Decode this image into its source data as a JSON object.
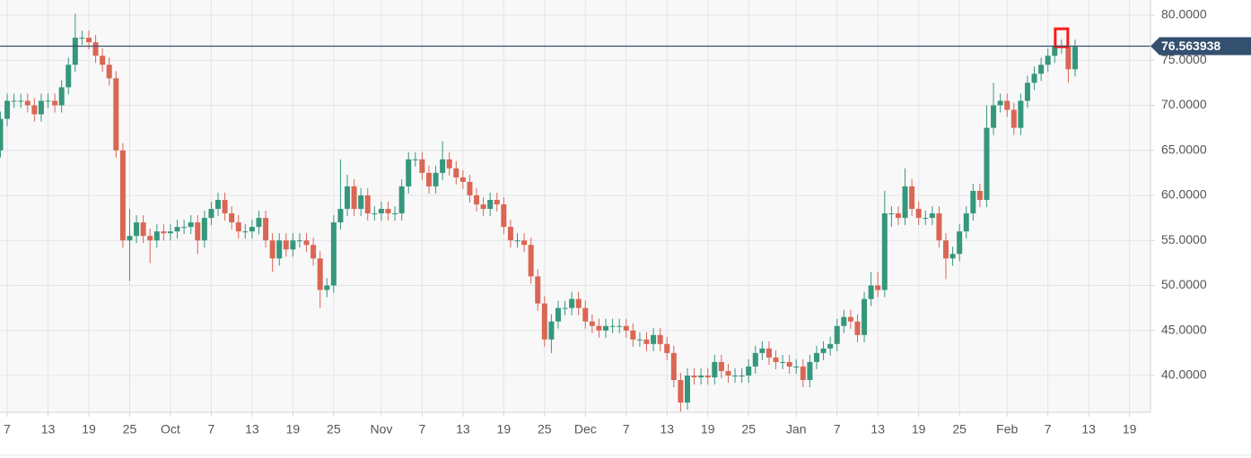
{
  "chart_data": {
    "type": "candlestick",
    "up_color": "#35977c",
    "down_color": "#da6654",
    "grid": true,
    "last_price": 76.563938,
    "last_price_color": "#34506f",
    "xlim": [
      5.94,
      175.08
    ],
    "ylim": [
      35.92,
      81.69
    ],
    "yticks": [
      {
        "value": 40,
        "label": "40.0000"
      },
      {
        "value": 45,
        "label": "45.0000"
      },
      {
        "value": 50,
        "label": "50.0000"
      },
      {
        "value": 55,
        "label": "55.0000"
      },
      {
        "value": 60,
        "label": "60.0000"
      },
      {
        "value": 65,
        "label": "65.0000"
      },
      {
        "value": 70,
        "label": "70.0000"
      },
      {
        "value": 75,
        "label": "75.0000"
      },
      {
        "value": 80,
        "label": "80.0000"
      }
    ],
    "xticks": [
      7,
      13,
      19,
      25,
      {
        "value": 31,
        "label": "Oct"
      },
      {
        "value": 37,
        "label": "7"
      },
      {
        "value": 43,
        "label": "13"
      },
      {
        "value": 49,
        "label": "19"
      },
      {
        "value": 55,
        "label": "25"
      },
      {
        "value": 62,
        "label": "Nov"
      },
      {
        "value": 68,
        "label": "7"
      },
      {
        "value": 74,
        "label": "13"
      },
      {
        "value": 80,
        "label": "19"
      },
      {
        "value": 86,
        "label": "25"
      },
      {
        "value": 92,
        "label": "Dec"
      },
      {
        "value": 98,
        "label": "7"
      },
      {
        "value": 104,
        "label": "13"
      },
      {
        "value": 110,
        "label": "19"
      },
      {
        "value": 116,
        "label": "25"
      },
      {
        "value": 123,
        "label": "Jan"
      },
      {
        "value": 129,
        "label": "7"
      },
      {
        "value": 135,
        "label": "13"
      },
      {
        "value": 141,
        "label": "19"
      },
      {
        "value": 147,
        "label": "25"
      },
      {
        "value": 154,
        "label": "Feb"
      },
      {
        "value": 160,
        "label": "7"
      },
      {
        "value": 166,
        "label": "13"
      },
      {
        "value": 172,
        "label": "19"
      }
    ],
    "x": [
      6,
      7,
      8,
      9,
      10,
      11,
      12,
      13,
      14,
      15,
      16,
      17,
      18,
      19,
      20,
      21,
      22,
      23,
      24,
      25,
      26,
      27,
      28,
      29,
      30,
      31,
      32,
      33,
      34,
      35,
      36,
      37,
      38,
      39,
      40,
      41,
      42,
      43,
      44,
      45,
      46,
      47,
      48,
      49,
      50,
      51,
      52,
      53,
      54,
      55,
      56,
      57,
      58,
      59,
      60,
      61,
      62,
      63,
      64,
      65,
      66,
      67,
      68,
      69,
      70,
      71,
      72,
      73,
      74,
      75,
      76,
      77,
      78,
      79,
      80,
      81,
      82,
      83,
      84,
      85,
      86,
      87,
      88,
      89,
      90,
      91,
      92,
      93,
      94,
      95,
      96,
      97,
      98,
      99,
      100,
      101,
      102,
      103,
      104,
      105,
      106,
      107,
      108,
      109,
      110,
      111,
      112,
      113,
      114,
      115,
      116,
      117,
      118,
      119,
      120,
      121,
      122,
      123,
      124,
      125,
      126,
      127,
      128,
      129,
      130,
      131,
      132,
      133,
      134,
      135,
      136,
      137,
      138,
      139,
      140,
      141,
      142,
      143,
      144,
      145,
      146,
      147,
      148,
      149,
      150,
      151,
      152,
      153,
      154,
      155,
      156,
      157,
      158,
      159,
      160,
      161,
      162,
      163,
      164
    ],
    "open": [
      65,
      68.5,
      70.5,
      70.5,
      70.5,
      70,
      69,
      70.5,
      70.5,
      70,
      72,
      74.5,
      77.5,
      77.5,
      77,
      75.5,
      74.5,
      73,
      65,
      55,
      55.5,
      57,
      55.5,
      55,
      56,
      55.8,
      56,
      56.5,
      56.5,
      57,
      55,
      57.5,
      58.5,
      59.5,
      58,
      57,
      56,
      56,
      56.5,
      57.5,
      55,
      53,
      55,
      54,
      55,
      55,
      54.5,
      53,
      49.5,
      50,
      57,
      58.5,
      61,
      58.5,
      60,
      58,
      58,
      58.5,
      58,
      58,
      61,
      64,
      64,
      62.5,
      61,
      62.5,
      64,
      63,
      62,
      61.5,
      60,
      59,
      58.5,
      59.5,
      59,
      56.5,
      55,
      55,
      54.5,
      51,
      48,
      44,
      46,
      47.5,
      47.5,
      48.5,
      47.5,
      46,
      45.5,
      45,
      45.5,
      45.5,
      45.5,
      45,
      44,
      44,
      43.5,
      44.5,
      43.5,
      42.5,
      39.5,
      37,
      40,
      39.8,
      40,
      39.8,
      41.5,
      40.5,
      40,
      40,
      40,
      41,
      42.5,
      43,
      42,
      41.5,
      41.5,
      41,
      41,
      39.5,
      41.5,
      42.5,
      43,
      43.5,
      45.5,
      46.5,
      46,
      44.5,
      48.5,
      50,
      49.5,
      58,
      58,
      57.5,
      61,
      58.5,
      57.5,
      57.5,
      58,
      55,
      53,
      53.5,
      56,
      58,
      60.5,
      59.5,
      67.5,
      70,
      70.5,
      69.5,
      67.5,
      70.5,
      72.5,
      73.5,
      74.5,
      75.5,
      76.5,
      76.5,
      74
    ],
    "high": [
      69.3,
      71.3,
      71.3,
      71.3,
      71.3,
      70.8,
      71.3,
      71.3,
      71.3,
      72.8,
      75.3,
      80.2,
      78.3,
      78.3,
      77.8,
      76.3,
      75.3,
      73.8,
      65.8,
      58.5,
      57.8,
      57.8,
      56.3,
      56.8,
      56.8,
      56.8,
      57.3,
      57.3,
      57.8,
      57.8,
      58.3,
      59.3,
      60.3,
      60.3,
      58.8,
      57.8,
      56.8,
      57.3,
      58.3,
      58.3,
      55.8,
      55.8,
      55.8,
      55.8,
      55.8,
      55.8,
      55.3,
      53.8,
      50.8,
      57.8,
      64,
      62.3,
      61.8,
      60.8,
      60.8,
      58.8,
      59.3,
      59.3,
      58.8,
      61.8,
      64.8,
      64.8,
      64.8,
      63.3,
      63.3,
      66,
      64.8,
      63.8,
      62.8,
      62.3,
      60.8,
      59.8,
      60.3,
      60.3,
      59.8,
      57.3,
      55.8,
      55.8,
      55.3,
      51.8,
      48.8,
      46.8,
      48.3,
      48.3,
      49.3,
      49.3,
      48.3,
      46.8,
      46.3,
      46.3,
      46.3,
      46.3,
      46.3,
      45.8,
      44.8,
      44.8,
      45.3,
      45.3,
      44.3,
      43.3,
      40.3,
      40.8,
      40.8,
      40.8,
      40.8,
      42.3,
      42.3,
      41.3,
      40.8,
      40.8,
      41.8,
      43.3,
      43.8,
      43.8,
      42.8,
      42.3,
      42.3,
      41.8,
      41.8,
      42.3,
      43.3,
      43.8,
      44.3,
      46.3,
      47.3,
      47.3,
      46.8,
      49.3,
      51.5,
      51.5,
      60.5,
      58.8,
      58.8,
      63,
      61.8,
      59.3,
      58.3,
      58.8,
      58.8,
      55.8,
      54.3,
      56.8,
      58.8,
      61.3,
      61.3,
      70,
      72.5,
      71.3,
      71.3,
      70.3,
      71.3,
      73.3,
      74.3,
      75.3,
      76.3,
      77.3,
      77.3,
      76.8,
      77.3
    ],
    "low": [
      64.2,
      67.7,
      69.7,
      69.7,
      69.2,
      68.2,
      68.2,
      69.7,
      69.2,
      69.2,
      71.2,
      73.7,
      76.7,
      76.2,
      74.7,
      73.7,
      72.2,
      64.2,
      54.2,
      50.5,
      54.7,
      54.7,
      52.5,
      54.2,
      55,
      55,
      55.2,
      55.7,
      55.7,
      53.5,
      54.2,
      56.7,
      57.7,
      57.2,
      56.2,
      55.2,
      55.2,
      55.2,
      55.7,
      54.2,
      51.5,
      52.2,
      53.2,
      53.2,
      54.2,
      53.7,
      52.2,
      47.5,
      48.7,
      49.2,
      56.2,
      57.7,
      57.7,
      57.7,
      57.2,
      57.2,
      57.2,
      57.2,
      57.2,
      57.2,
      60.2,
      63.2,
      61.7,
      60.2,
      60.2,
      61.7,
      62.2,
      61.2,
      60.7,
      59.2,
      58.2,
      57.7,
      57.7,
      58.2,
      55.7,
      54.2,
      54.2,
      53.7,
      50.2,
      47.2,
      43.2,
      42.5,
      45.2,
      46.7,
      46.7,
      46.7,
      45.2,
      44.7,
      44.2,
      44.2,
      44.7,
      44.7,
      44.2,
      43.2,
      43.2,
      42.7,
      42.7,
      42.7,
      41.7,
      38.7,
      36,
      36.2,
      39,
      39,
      39,
      39,
      39.7,
      39.2,
      39.2,
      39.2,
      39.2,
      40.2,
      41.7,
      41.2,
      40.7,
      40.7,
      40.2,
      40.2,
      38.7,
      38.7,
      40.7,
      41.7,
      42.2,
      42.7,
      44.7,
      45.2,
      43.7,
      43.7,
      47.7,
      48.7,
      48.7,
      56.5,
      56.7,
      56.7,
      57.7,
      56.7,
      56.7,
      56.7,
      54.2,
      50.7,
      52.2,
      52.7,
      55.2,
      57.2,
      58.7,
      58.7,
      66.7,
      69.2,
      68.7,
      66.7,
      66.7,
      69.7,
      71.7,
      72.7,
      73.7,
      74.7,
      75.7,
      72.5,
      73.2
    ],
    "close": [
      68.5,
      70.5,
      70.5,
      70.5,
      70,
      69,
      70.5,
      70.5,
      70,
      72,
      74.5,
      77.5,
      77.5,
      77,
      75.5,
      74.5,
      73,
      65,
      55,
      55.5,
      57,
      55.5,
      55,
      56,
      55.8,
      56,
      56.5,
      56.5,
      57,
      55,
      57.5,
      58.5,
      59.5,
      58,
      57,
      56,
      56,
      56.5,
      57.5,
      55,
      53,
      55,
      54,
      55,
      55,
      54.5,
      53,
      49.5,
      50,
      57,
      58.5,
      61,
      58.5,
      60,
      58,
      58,
      58.5,
      58,
      58,
      61,
      64,
      64,
      62.5,
      61,
      62.5,
      64,
      63,
      62,
      61.5,
      60,
      59,
      58.5,
      59.5,
      59,
      56.5,
      55,
      55,
      54.5,
      51,
      48,
      44,
      46,
      47.5,
      47.5,
      48.5,
      47.5,
      46,
      45.5,
      45,
      45.5,
      45.5,
      45.5,
      45,
      44,
      44,
      43.5,
      44.5,
      43.5,
      42.5,
      39.5,
      37,
      40,
      39.8,
      40,
      39.8,
      41.5,
      40.5,
      40,
      40,
      40,
      41,
      42.5,
      43,
      42,
      41.5,
      41.5,
      41,
      41,
      39.5,
      41.5,
      42.5,
      43,
      43.5,
      45.5,
      46.5,
      46,
      44.5,
      48.5,
      50,
      49.5,
      58,
      58,
      57.5,
      61,
      58.5,
      57.5,
      57.5,
      58,
      55,
      53,
      53.5,
      56,
      58,
      60.5,
      59.5,
      67.5,
      70,
      70.5,
      69.5,
      67.5,
      70.5,
      72.5,
      73.5,
      74.5,
      75.5,
      76.5,
      76.5,
      74,
      76.5
    ]
  }
}
